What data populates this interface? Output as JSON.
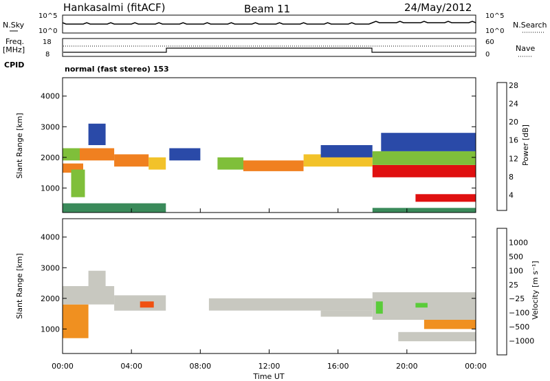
{
  "header": {
    "station": "Hankasalmi (fitACF)",
    "beam": "Beam 11",
    "date": "24/May/2012"
  },
  "top_panels": {
    "nsky_label": "N.Sky",
    "nsearch_label": "N.Search",
    "counts_ticks": [
      "10^5",
      "10^0"
    ],
    "freq_label_1": "Freq.",
    "freq_label_2": "[MHz]",
    "freq_ticks": [
      "18",
      "8"
    ],
    "nave_label": "Nave",
    "nave_ticks": [
      "60",
      "0"
    ],
    "cpid_label": "CPID",
    "cpid_value": "normal (fast stereo) 153"
  },
  "chart_data": [
    {
      "type": "heatmap",
      "name": "power",
      "ylabel": "Slant Range [km]",
      "yticks": [
        1000,
        2000,
        3000,
        4000
      ],
      "ylim": [
        200,
        4600
      ],
      "xlim": [
        0,
        24
      ],
      "colorbar_label": "Power [dB]",
      "colorbar_ticks": [
        "4",
        "8",
        "12",
        "16",
        "20",
        "24",
        "28"
      ],
      "colorbar_colors": [
        "#0a0aff",
        "#2a4aa8",
        "#3a8a5a",
        "#7fbf3a",
        "#f2c22a",
        "#f08020",
        "#e01010"
      ],
      "colorbar_range": [
        0,
        30
      ],
      "bands": [
        {
          "t0": 0.0,
          "t1": 1.0,
          "r0": 1900,
          "r1": 2300,
          "level": 16
        },
        {
          "t0": 0.0,
          "t1": 1.2,
          "r0": 1500,
          "r1": 1800,
          "level": 24
        },
        {
          "t0": 0.5,
          "t1": 1.3,
          "r0": 700,
          "r1": 1600,
          "level": 14
        },
        {
          "t0": 1.0,
          "t1": 3.0,
          "r0": 1900,
          "r1": 2300,
          "level": 22
        },
        {
          "t0": 1.5,
          "t1": 2.5,
          "r0": 2400,
          "r1": 3100,
          "level": 8
        },
        {
          "t0": 3.0,
          "t1": 5.0,
          "r0": 1700,
          "r1": 2100,
          "level": 24
        },
        {
          "t0": 5.0,
          "t1": 6.0,
          "r0": 1600,
          "r1": 2000,
          "level": 18
        },
        {
          "t0": 6.2,
          "t1": 8.0,
          "r0": 1900,
          "r1": 2300,
          "level": 8
        },
        {
          "t0": 9.0,
          "t1": 10.5,
          "r0": 1600,
          "r1": 2000,
          "level": 16
        },
        {
          "t0": 10.5,
          "t1": 14.0,
          "r0": 1550,
          "r1": 1900,
          "level": 22
        },
        {
          "t0": 14.0,
          "t1": 18.0,
          "r0": 1700,
          "r1": 2100,
          "level": 20
        },
        {
          "t0": 15.0,
          "t1": 18.0,
          "r0": 2000,
          "r1": 2400,
          "level": 8
        },
        {
          "t0": 18.0,
          "t1": 24.0,
          "r0": 1350,
          "r1": 1750,
          "level": 26
        },
        {
          "t0": 18.0,
          "t1": 24.0,
          "r0": 1750,
          "r1": 2200,
          "level": 14
        },
        {
          "t0": 18.5,
          "t1": 24.0,
          "r0": 2200,
          "r1": 2800,
          "level": 8
        },
        {
          "t0": 20.5,
          "t1": 24.0,
          "r0": 550,
          "r1": 800,
          "level": 26
        },
        {
          "t0": 0.0,
          "t1": 6.0,
          "r0": 200,
          "r1": 500,
          "level": 10
        },
        {
          "t0": 18.0,
          "t1": 24.0,
          "r0": 200,
          "r1": 350,
          "level": 10
        }
      ]
    },
    {
      "type": "heatmap",
      "name": "velocity",
      "xlabel": "Time UT",
      "xticks": [
        "00:00",
        "04:00",
        "08:00",
        "12:00",
        "16:00",
        "20:00",
        "00:00"
      ],
      "xtick_hours": [
        0,
        4,
        8,
        12,
        16,
        20,
        24
      ],
      "ylabel": "Slant Range [km]",
      "yticks": [
        1000,
        2000,
        3000,
        4000
      ],
      "ylim": [
        200,
        4600
      ],
      "xlim": [
        0,
        24
      ],
      "colorbar_label": "Velocity [m s⁻¹]",
      "colorbar_ticks": [
        "1000",
        "500",
        "100",
        "25",
        "−25",
        "−100",
        "−500",
        "−1000"
      ],
      "colorbar_colors": [
        "#1a2aa8",
        "#2a70b8",
        "#3a9a5a",
        "#5acc3a",
        "#c8c8c0",
        "#f8c020",
        "#f09020",
        "#f05010",
        "#e01010"
      ],
      "bands": [
        {
          "t0": 0.0,
          "t1": 1.5,
          "r0": 700,
          "r1": 1800,
          "color": 6
        },
        {
          "t0": 0.0,
          "t1": 3.0,
          "r0": 1800,
          "r1": 2400,
          "color": 4
        },
        {
          "t0": 1.5,
          "t1": 2.5,
          "r0": 2400,
          "r1": 2900,
          "color": 4
        },
        {
          "t0": 3.0,
          "t1": 6.0,
          "r0": 1600,
          "r1": 2100,
          "color": 4
        },
        {
          "t0": 4.5,
          "t1": 5.3,
          "r0": 1700,
          "r1": 1900,
          "color": 7
        },
        {
          "t0": 8.5,
          "t1": 18.0,
          "r0": 1600,
          "r1": 2000,
          "color": 4
        },
        {
          "t0": 15.0,
          "t1": 18.0,
          "r0": 1400,
          "r1": 1600,
          "color": 4
        },
        {
          "t0": 18.0,
          "t1": 24.0,
          "r0": 1300,
          "r1": 2200,
          "color": 4
        },
        {
          "t0": 18.2,
          "t1": 18.6,
          "r0": 1500,
          "r1": 1900,
          "color": 3
        },
        {
          "t0": 20.5,
          "t1": 21.2,
          "r0": 1700,
          "r1": 1850,
          "color": 3
        },
        {
          "t0": 19.5,
          "t1": 24.0,
          "r0": 600,
          "r1": 900,
          "color": 4
        },
        {
          "t0": 21.0,
          "t1": 24.0,
          "r0": 1000,
          "r1": 1300,
          "color": 6
        }
      ]
    }
  ]
}
